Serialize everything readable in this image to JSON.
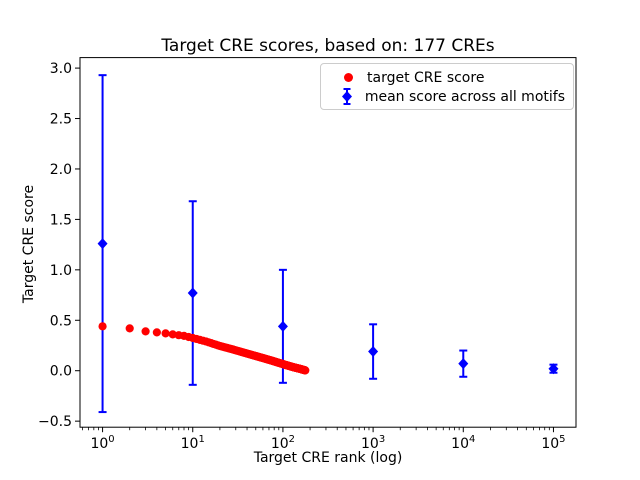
{
  "figure": {
    "background": "#ffffff",
    "frame_color": "#000000"
  },
  "chart_data": {
    "type": "scatter",
    "title": "Target CRE scores, based on: 177 CREs",
    "xlabel": "Target CRE rank (log)",
    "ylabel": "Target CRE score",
    "x_scale": "log",
    "xlim": [
      0.562,
      177828
    ],
    "ylim": [
      -0.56,
      3.104
    ],
    "x_major_ticks": [
      1,
      10,
      100,
      1000,
      10000,
      100000
    ],
    "x_tick_exponents": [
      0,
      1,
      2,
      3,
      4,
      5
    ],
    "y_ticks": [
      -0.5,
      0.0,
      0.5,
      1.0,
      1.5,
      2.0,
      2.5,
      3.0
    ],
    "grid": false,
    "legend_position": "upper right",
    "series": [
      {
        "name": "target CRE score",
        "kind": "scatter",
        "marker": "circle",
        "color": "#ff0000",
        "count": 177,
        "anchors": [
          [
            1,
            0.44
          ],
          [
            2,
            0.42
          ],
          [
            3,
            0.39
          ],
          [
            4,
            0.38
          ],
          [
            5,
            0.37
          ],
          [
            6,
            0.36
          ],
          [
            8,
            0.345
          ],
          [
            10,
            0.325
          ],
          [
            14,
            0.29
          ],
          [
            20,
            0.245
          ],
          [
            28,
            0.21
          ],
          [
            40,
            0.17
          ],
          [
            55,
            0.135
          ],
          [
            75,
            0.1
          ],
          [
            100,
            0.065
          ],
          [
            130,
            0.035
          ],
          [
            155,
            0.018
          ],
          [
            177,
            0.003
          ]
        ]
      },
      {
        "name": "mean score across all motifs",
        "kind": "errorbar",
        "marker": "diamond",
        "color": "#0000ff",
        "points": [
          {
            "x": 1,
            "y": 1.26,
            "yerr": 1.67
          },
          {
            "x": 10,
            "y": 0.77,
            "yerr": 0.91
          },
          {
            "x": 100,
            "y": 0.44,
            "yerr": 0.56
          },
          {
            "x": 1000,
            "y": 0.19,
            "yerr": 0.27
          },
          {
            "x": 10000,
            "y": 0.07,
            "yerr": 0.13
          },
          {
            "x": 100000,
            "y": 0.02,
            "yerr": 0.04
          }
        ]
      }
    ]
  }
}
